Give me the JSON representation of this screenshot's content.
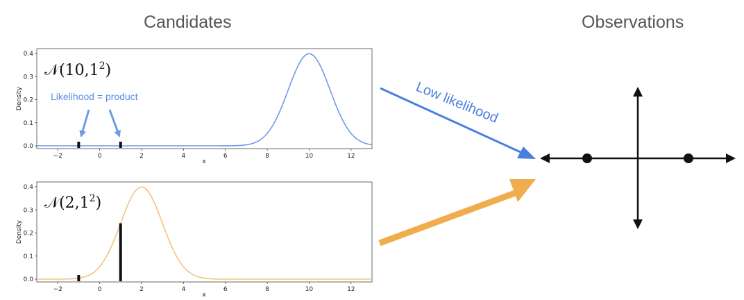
{
  "headings": {
    "candidates": "Candidates",
    "observations": "Observations"
  },
  "observations": [
    -1,
    1
  ],
  "colors": {
    "blue_curve": "#6f9ae8",
    "orange_curve": "#f5c27e",
    "blue_arrow": "#4a7fe0",
    "orange_arrow": "#f0ad4e",
    "axis": "#111111",
    "bar": "#111111"
  },
  "annotations": {
    "likelihood_product": "Likelihood = product",
    "low_likelihood": "Low likelihood"
  },
  "chart_data": [
    {
      "type": "line",
      "label_main": "𝒩(10,1",
      "label_sup": "2",
      "label_close": ")",
      "mean": 10,
      "sd": 1,
      "xlabel": "x",
      "ylabel": "Density",
      "xlim": [
        -3,
        13
      ],
      "ylim": [
        0,
        0.4
      ],
      "xticks": [
        -2,
        0,
        2,
        4,
        6,
        8,
        10,
        12
      ],
      "yticks": [
        "0.0",
        "0.1",
        "0.2",
        "0.3",
        "0.4"
      ],
      "color": "#6f9ae8",
      "observation_densities": [
        0.0,
        0.0
      ]
    },
    {
      "type": "line",
      "label_main": "𝒩(2,1",
      "label_sup": "2",
      "label_close": ")",
      "mean": 2,
      "sd": 1,
      "xlabel": "x",
      "ylabel": "Density",
      "xlim": [
        -3,
        13
      ],
      "ylim": [
        0,
        0.4
      ],
      "xticks": [
        -2,
        0,
        2,
        4,
        6,
        8,
        10,
        12
      ],
      "yticks": [
        "0.0",
        "0.1",
        "0.2",
        "0.3",
        "0.4"
      ],
      "color": "#f5c27e",
      "observation_densities": [
        0.004,
        0.242
      ]
    }
  ]
}
